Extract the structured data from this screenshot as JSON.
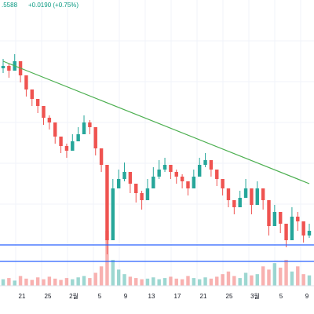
{
  "chart_data": {
    "type": "candlestick",
    "header": {
      "price_fragment": ".5588",
      "change": "+0.0190 (+0.75%)"
    },
    "x_ticks": [
      "21",
      "25",
      "2월",
      "5",
      "9",
      "13",
      "17",
      "21",
      "25",
      "3월",
      "5",
      "9"
    ],
    "y_range": [
      0,
      100
    ],
    "ohlc": {
      "day_index": [
        0,
        1,
        2,
        3,
        4,
        5,
        6,
        7,
        8,
        9,
        10,
        11,
        12,
        13,
        14,
        15,
        16,
        17,
        18,
        19,
        20,
        21,
        22,
        23,
        24,
        25,
        26,
        27,
        28,
        29,
        30,
        31,
        32,
        33,
        34,
        35,
        36,
        37,
        38,
        39,
        40,
        41,
        42,
        43,
        44,
        45,
        46,
        47,
        48,
        49,
        50,
        51,
        52,
        53
      ],
      "close": [
        92,
        90,
        94,
        88,
        82,
        78,
        75,
        70,
        68,
        62,
        58,
        56,
        60,
        63,
        68,
        66,
        57,
        50,
        18,
        40,
        44,
        47,
        42,
        38,
        35,
        40,
        45,
        48,
        50,
        47,
        45,
        43,
        40,
        45,
        50,
        52,
        48,
        44,
        40,
        35,
        32,
        36,
        40,
        33,
        40,
        35,
        24,
        30,
        25,
        18,
        28,
        26,
        20,
        22
      ],
      "high": [
        95,
        93,
        97,
        91,
        85,
        81,
        78,
        73,
        71,
        65,
        61,
        59,
        63,
        66,
        71,
        69,
        60,
        53,
        24,
        44,
        48,
        51,
        46,
        42,
        39,
        44,
        49,
        52,
        53,
        50,
        48,
        46,
        43,
        48,
        53,
        55,
        51,
        47,
        43,
        38,
        35,
        39,
        44,
        37,
        43,
        38,
        28,
        33,
        28,
        22,
        32,
        30,
        24,
        25
      ],
      "low": [
        89,
        87,
        91,
        85,
        79,
        75,
        72,
        67,
        65,
        59,
        55,
        53,
        57,
        60,
        65,
        63,
        54,
        47,
        12,
        36,
        40,
        43,
        38,
        34,
        31,
        36,
        41,
        44,
        47,
        44,
        42,
        40,
        37,
        42,
        47,
        49,
        45,
        41,
        37,
        32,
        29,
        33,
        36,
        29,
        36,
        31,
        20,
        26,
        21,
        15,
        24,
        22,
        17,
        19
      ],
      "volume": [
        10,
        12,
        8,
        15,
        11,
        9,
        13,
        10,
        14,
        11,
        9,
        12,
        10,
        13,
        15,
        12,
        20,
        30,
        85,
        40,
        25,
        18,
        14,
        12,
        10,
        11,
        13,
        10,
        12,
        14,
        11,
        10,
        15,
        12,
        10,
        13,
        11,
        14,
        18,
        22,
        15,
        12,
        20,
        16,
        18,
        30,
        25,
        35,
        28,
        40,
        22,
        30,
        18,
        16
      ]
    },
    "trendline": {
      "from": [
        0,
        94
      ],
      "to": [
        53,
        42
      ],
      "color": "#4caf50"
    },
    "horizontal_lines": [
      {
        "value": 16,
        "color": "#2962ff"
      },
      {
        "value": 9,
        "color": "#2962ff"
      }
    ],
    "colors": {
      "up": "#26a69a",
      "down": "#ef5350",
      "grid": "#f0f3fa",
      "axis": "#b2b5be"
    }
  }
}
